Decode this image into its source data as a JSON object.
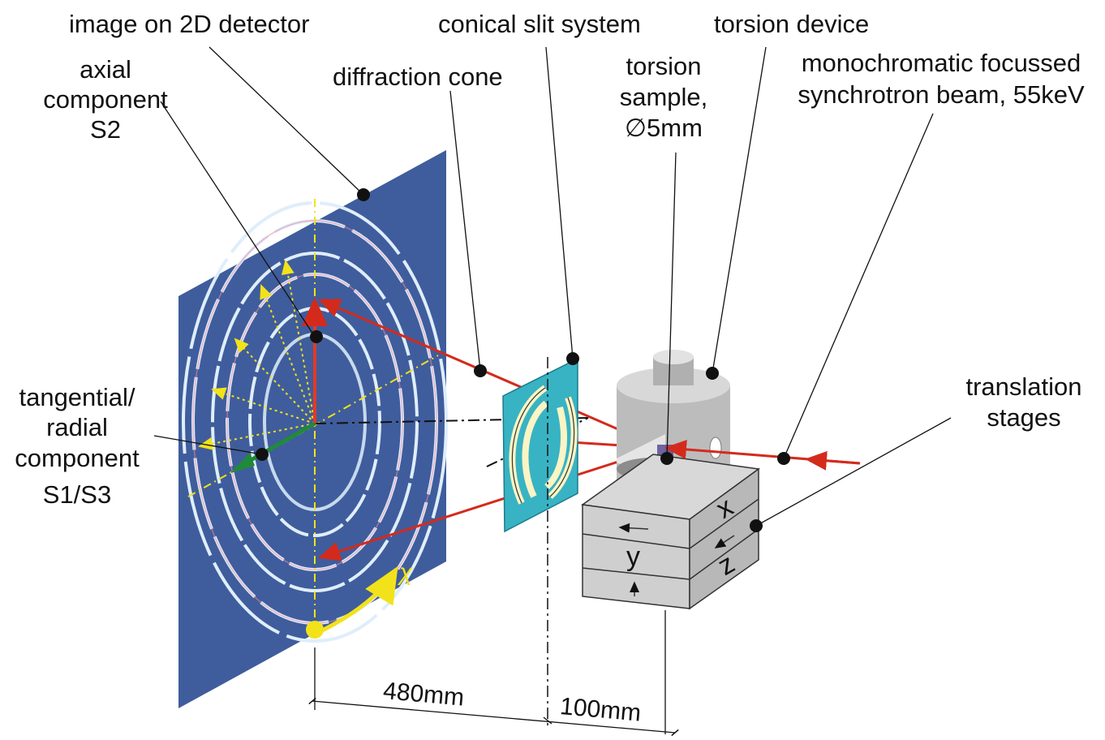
{
  "labels": {
    "detector_image": "image on 2D detector",
    "axial_line1": "axial",
    "axial_line2": "component",
    "axial_line3": "S2",
    "diffraction_cone": "diffraction cone",
    "slit_system": "conical slit system",
    "torsion_device": "torsion device",
    "sample_line1": "torsion",
    "sample_line2": "sample,",
    "sample_line3": "∅5mm",
    "beam_line1": "monochromatic focussed",
    "beam_line2": "synchrotron beam, 55keV",
    "tangential_line1": "tangential/",
    "tangential_line2": "radial",
    "tangential_line3": "component",
    "tangential_line4": "S1/S3",
    "stages_line1": "translation",
    "stages_line2": "stages",
    "chi": "χ",
    "axis_x": "x",
    "axis_y": "y",
    "axis_z": "z"
  },
  "dimensions": {
    "detector_to_slit": "480mm",
    "slit_to_sample": "100mm"
  },
  "colors": {
    "detector": "#3f5d9c",
    "slit": "#38b3c4",
    "beam": "#d42a1c",
    "axial_arrow": "#e33a23",
    "radial_arrow": "#1f8a3a",
    "guides": "#f2e21a",
    "device": "#c4c4c4",
    "stages": "#c8c8c8"
  }
}
